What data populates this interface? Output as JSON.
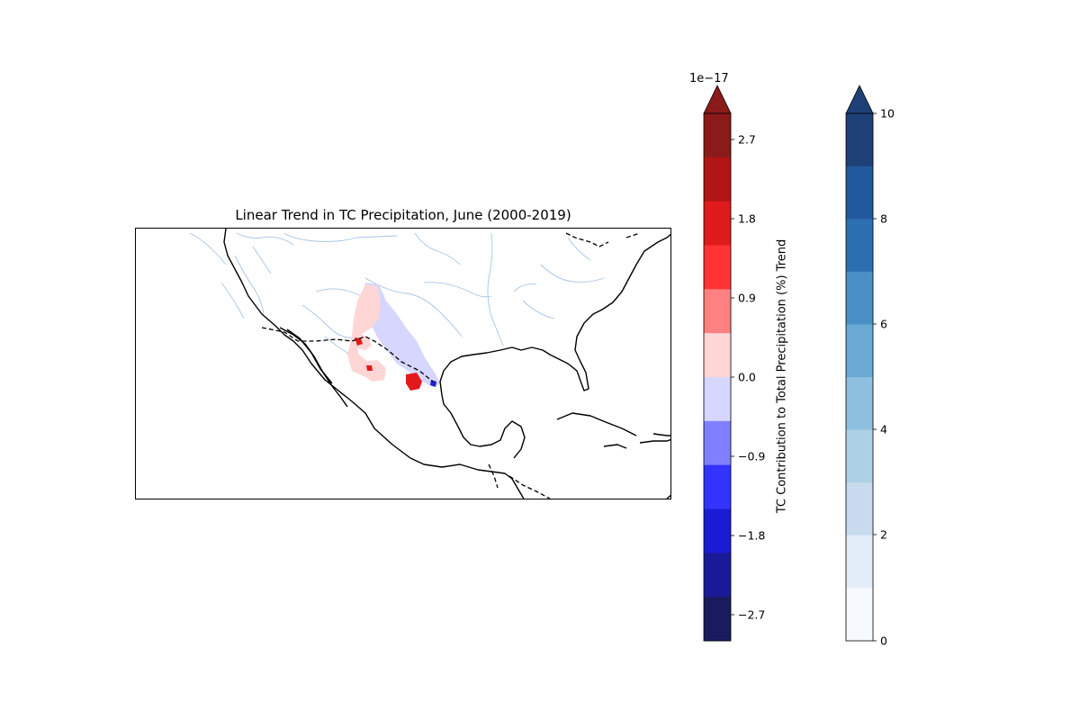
{
  "figure": {
    "title": "Linear Trend in TC Precipitation, June (2000-2019)"
  },
  "map": {
    "region": "Gulf of Mexico and surrounding land",
    "features": [
      "coastlines",
      "country-borders",
      "rivers",
      "precipitation-trend-field"
    ],
    "colors": {
      "coastline": "#000000",
      "border": "#000000",
      "river": "#a8c4e6",
      "field_pos_light": "#ffd3d3",
      "field_neg_light": "#d3d3ff",
      "field_pos_strong": "#e31a1c",
      "field_neg_strong": "#2020d0"
    }
  },
  "trend_colorbar": {
    "exponent_label": "1e−17",
    "label": "TC Contribution to Total Precipitation (%) Trend",
    "ticks": [
      "2.7",
      "1.8",
      "0.9",
      "0.0",
      "−0.9",
      "−1.8",
      "−2.7"
    ],
    "extend": "max",
    "colors_top_to_bottom": [
      "#8b1a1a",
      "#b21515",
      "#e01b1b",
      "#ff3333",
      "#ff8080",
      "#ffd6d6",
      "#d6d6ff",
      "#8080ff",
      "#3333ff",
      "#1b1bd6",
      "#1a1a99",
      "#1a1a5e"
    ],
    "extend_color": "#8b1a1a"
  },
  "count_colorbar": {
    "ticks": [
      "10",
      "8",
      "6",
      "4",
      "2",
      "0"
    ],
    "extend": "max",
    "colors_top_to_bottom": [
      "#1f4077",
      "#22599c",
      "#2b6fb0",
      "#4a90c6",
      "#69a9d4",
      "#8fbfde",
      "#aed0e5",
      "#c8dbee",
      "#e3edf8",
      "#f6f9fd"
    ],
    "extend_color": "#1f4077"
  }
}
